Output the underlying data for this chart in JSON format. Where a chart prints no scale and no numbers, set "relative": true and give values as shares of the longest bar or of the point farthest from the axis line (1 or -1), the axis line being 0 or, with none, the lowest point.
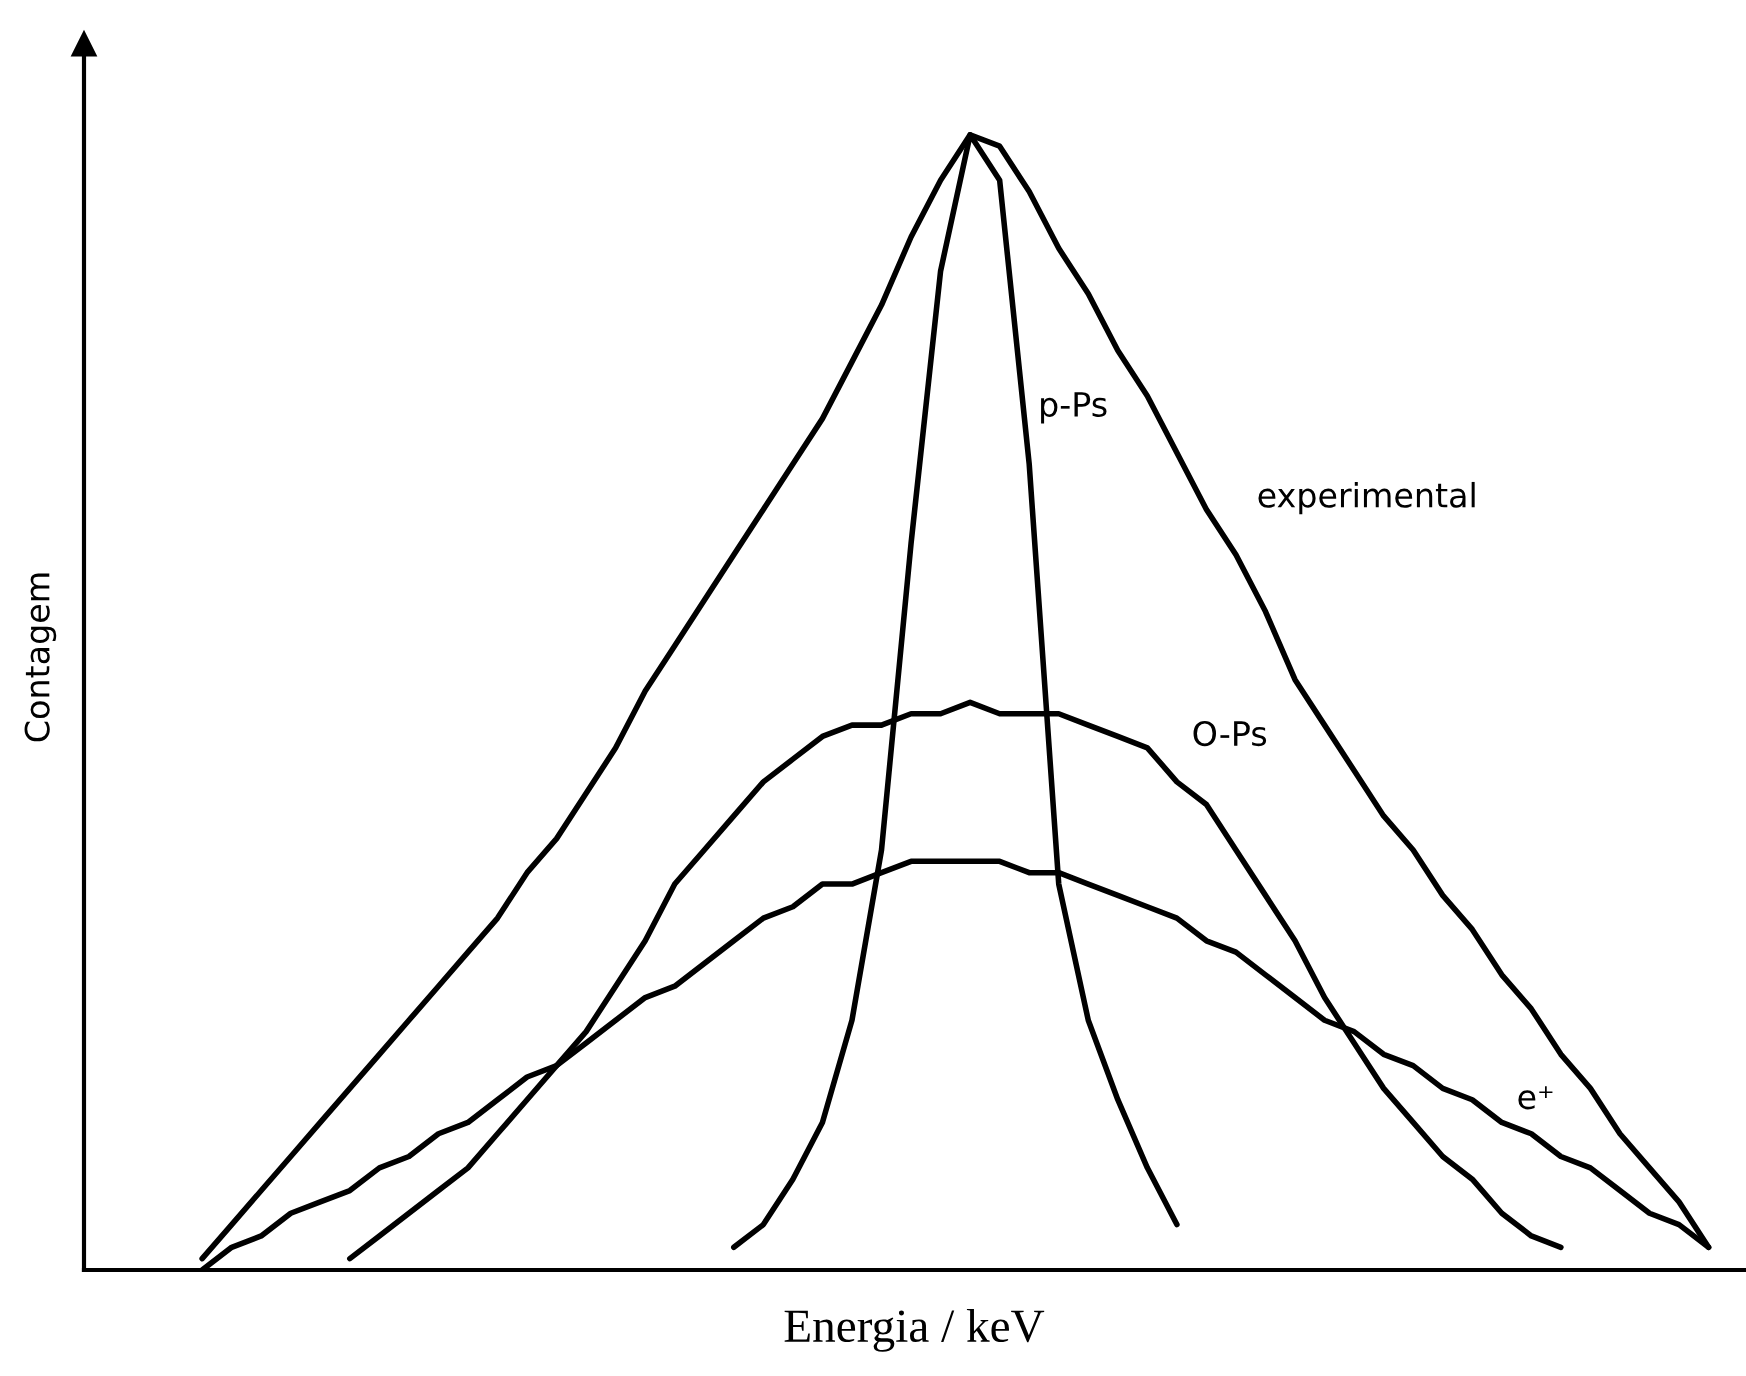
{
  "chart_data": {
    "type": "line",
    "relative": true,
    "tick_labels": false,
    "xlabel": "Energia / keV",
    "ylabel": "Contagem",
    "categories": [
      null,
      null,
      null,
      null,
      null,
      null,
      null,
      null,
      null,
      null,
      null,
      null,
      null,
      null,
      null,
      null,
      null,
      null,
      null,
      null,
      null,
      null,
      null,
      null,
      null,
      null,
      null,
      null,
      null,
      null,
      null,
      null,
      null,
      null,
      null,
      null,
      null,
      null,
      null,
      null,
      null,
      null,
      null,
      null,
      null,
      null,
      null,
      null,
      null,
      null,
      null,
      null,
      null,
      null,
      null,
      null,
      null
    ],
    "series": [
      {
        "name": "experimental",
        "color": "#000000",
        "values": [
          null,
          null,
          null,
          null,
          0.01,
          0.04,
          0.07,
          0.1,
          0.13,
          0.16,
          0.19,
          0.22,
          0.25,
          0.28,
          0.31,
          0.35,
          0.38,
          0.42,
          0.46,
          0.51,
          0.55,
          0.59,
          0.63,
          0.67,
          0.71,
          0.75,
          0.8,
          0.85,
          0.91,
          0.96,
          1,
          0.99,
          0.95,
          0.9,
          0.86,
          0.81,
          0.77,
          0.72,
          0.67,
          0.63,
          0.58,
          0.52,
          0.48,
          0.44,
          0.4,
          0.37,
          0.33,
          0.3,
          0.26,
          0.23,
          0.19,
          0.16,
          0.12,
          0.09,
          0.06,
          0.02,
          null
        ]
      },
      {
        "name": "e⁺",
        "color": "#000000",
        "values": [
          null,
          null,
          null,
          null,
          0,
          0.02,
          0.03,
          0.05,
          0.06,
          0.07,
          0.09,
          0.1,
          0.12,
          0.13,
          0.15,
          0.17,
          0.18,
          0.2,
          0.22,
          0.24,
          0.25,
          0.27,
          0.29,
          0.31,
          0.32,
          0.34,
          0.34,
          0.35,
          0.36,
          0.36,
          0.36,
          0.36,
          0.35,
          0.35,
          0.34,
          0.33,
          0.32,
          0.31,
          0.29,
          0.28,
          0.26,
          0.24,
          0.22,
          0.21,
          0.19,
          0.18,
          0.16,
          0.15,
          0.13,
          0.12,
          0.1,
          0.09,
          0.07,
          0.05,
          0.04,
          0.02,
          null
        ]
      },
      {
        "name": "O-Ps",
        "color": "#000000",
        "values": [
          null,
          null,
          null,
          null,
          null,
          null,
          null,
          null,
          null,
          0.01,
          0.03,
          0.05,
          0.07,
          0.09,
          0.12,
          0.15,
          0.18,
          0.21,
          0.25,
          0.29,
          0.34,
          0.37,
          0.4,
          0.43,
          0.45,
          0.47,
          0.48,
          0.48,
          0.49,
          0.49,
          0.5,
          0.49,
          0.49,
          0.49,
          0.48,
          0.47,
          0.46,
          0.43,
          0.41,
          0.37,
          0.33,
          0.29,
          0.24,
          0.2,
          0.16,
          0.13,
          0.1,
          0.08,
          0.05,
          0.03,
          0.02,
          null,
          null,
          null,
          null,
          null,
          null
        ]
      },
      {
        "name": "p-Ps",
        "color": "#000000",
        "values": [
          null,
          null,
          null,
          null,
          null,
          null,
          null,
          null,
          null,
          null,
          null,
          null,
          null,
          null,
          null,
          null,
          null,
          null,
          null,
          null,
          null,
          null,
          0.02,
          0.04,
          0.08,
          0.13,
          0.22,
          0.37,
          0.64,
          0.88,
          1,
          0.96,
          0.71,
          0.34,
          0.22,
          0.15,
          0.09,
          0.04,
          null,
          null,
          null,
          null,
          null,
          null,
          null,
          null,
          null,
          null,
          null,
          null,
          null,
          null,
          null,
          null,
          null,
          null,
          null
        ]
      }
    ]
  }
}
